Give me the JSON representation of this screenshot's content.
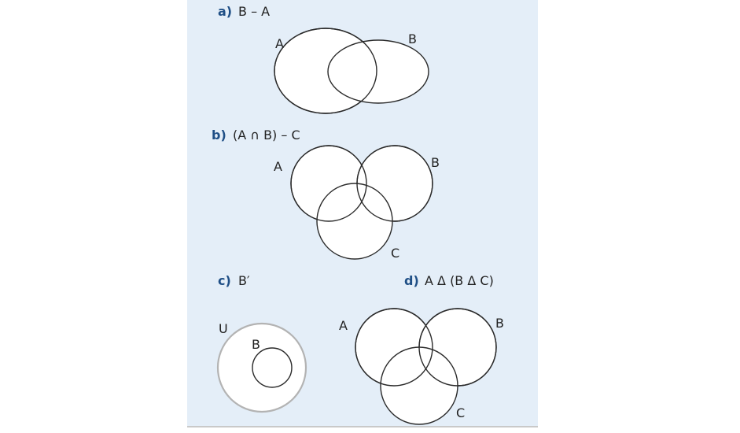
{
  "parts": [
    {
      "id": "a",
      "letter": "a)",
      "expression": "B – A",
      "sets": [
        "A",
        "B"
      ]
    },
    {
      "id": "b",
      "letter": "b)",
      "expression": "(A ∩ B) – C",
      "sets": [
        "A",
        "B",
        "C"
      ]
    },
    {
      "id": "c",
      "letter": "c)",
      "expression": "B′",
      "sets": [
        "U",
        "B"
      ]
    },
    {
      "id": "d",
      "letter": "d)",
      "expression": "A Δ (B Δ C)",
      "sets": [
        "A",
        "B",
        "C"
      ]
    }
  ],
  "colors": {
    "panel": "#e4eef8",
    "title_letter": "#1f4f86",
    "outline": "#2a2a2a",
    "universe_outline": "#b3b3b3"
  }
}
